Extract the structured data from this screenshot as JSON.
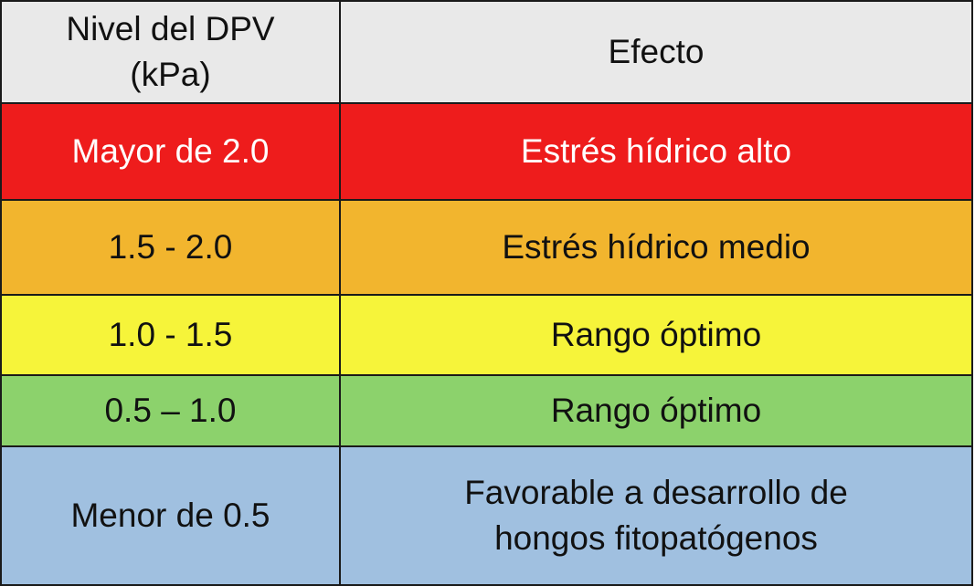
{
  "table": {
    "headers": {
      "level": "Nivel del DPV (kPa)",
      "level_line1": "Nivel del DPV",
      "level_line2": "(kPa)",
      "effect": "Efecto"
    },
    "header_bg": "#e9e9e9",
    "rows": [
      {
        "level": "Mayor de 2.0",
        "effect": "Estrés hídrico alto",
        "effect_line1": "",
        "effect_line2": "",
        "bg": "#ee1c1c",
        "text_color": "#ffffff"
      },
      {
        "level": "1.5 - 2.0",
        "effect": "Estrés hídrico medio",
        "effect_line1": "",
        "effect_line2": "",
        "bg": "#f2b52e",
        "text_color": "#111111"
      },
      {
        "level": "1.0 - 1.5",
        "effect": "Rango óptimo",
        "effect_line1": "",
        "effect_line2": "",
        "bg": "#f6f43a",
        "text_color": "#111111"
      },
      {
        "level": "0.5 – 1.0",
        "effect": "Rango óptimo",
        "effect_line1": "",
        "effect_line2": "",
        "bg": "#8cd26c",
        "text_color": "#111111"
      },
      {
        "level": "Menor de 0.5",
        "effect": "Favorable a desarrollo de hongos fitopatógenos",
        "effect_line1": "Favorable a desarrollo de",
        "effect_line2": "hongos fitopatógenos",
        "bg": "#a0c0e0",
        "text_color": "#111111"
      }
    ]
  }
}
